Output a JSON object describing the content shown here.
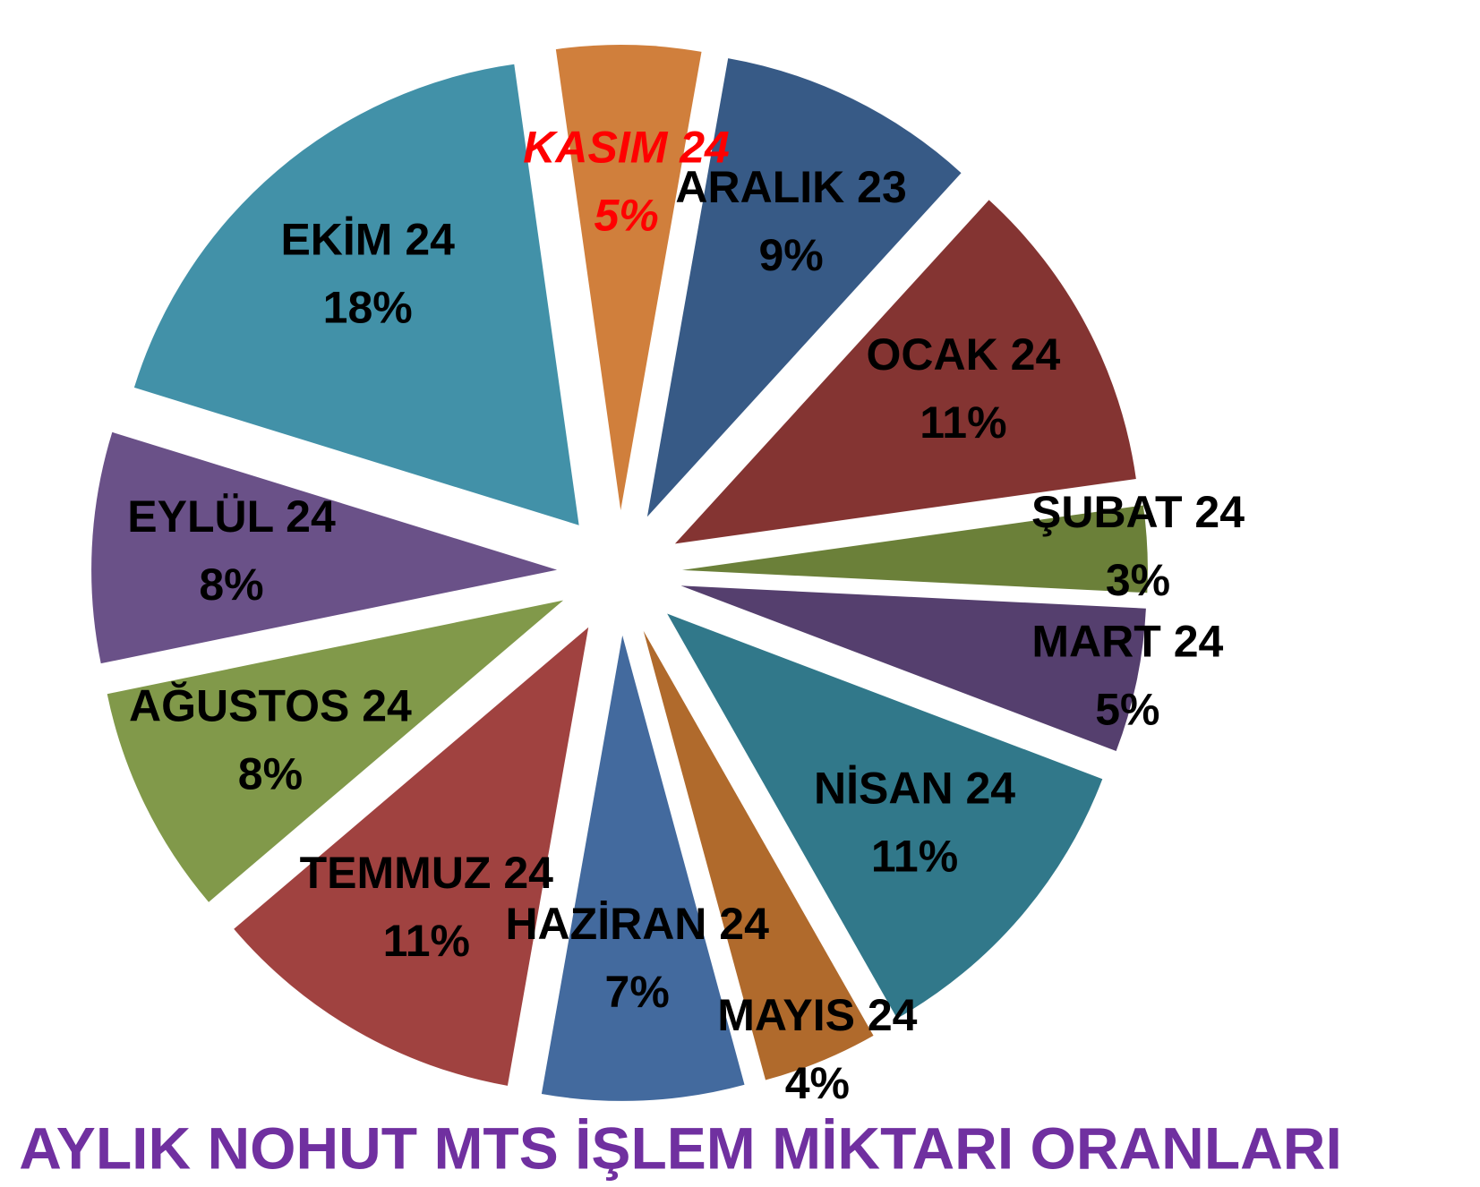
{
  "chart_data": {
    "type": "pie",
    "title": "AYLIK NOHUT MTS İŞLEM MİKTARI ORANLARI",
    "categories": [
      "ARALIK 23",
      "OCAK 24",
      "ŞUBAT 24",
      "MART 24",
      "NİSAN 24",
      "MAYIS 24",
      "HAZİRAN 24",
      "TEMMUZ 24",
      "AĞUSTOS 24",
      "EYLÜL 24",
      "EKİM 24",
      "KASIM 24"
    ],
    "values": [
      9,
      11,
      3,
      5,
      11,
      4,
      7,
      11,
      8,
      8,
      18,
      5
    ],
    "value_labels": [
      "9%",
      "11%",
      "3%",
      "5%",
      "11%",
      "4%",
      "7%",
      "11%",
      "8%",
      "8%",
      "18%",
      "5%"
    ],
    "colors": [
      "#375a86",
      "#843432",
      "#6b8039",
      "#553f6e",
      "#31788a",
      "#b06a2c",
      "#436a9e",
      "#a04240",
      "#81994a",
      "#6a5188",
      "#4291a8",
      "#d07f3c"
    ],
    "label_colors": [
      "#000000",
      "#000000",
      "#000000",
      "#000000",
      "#000000",
      "#000000",
      "#000000",
      "#000000",
      "#000000",
      "#000000",
      "#000000",
      "#ff0000"
    ]
  }
}
